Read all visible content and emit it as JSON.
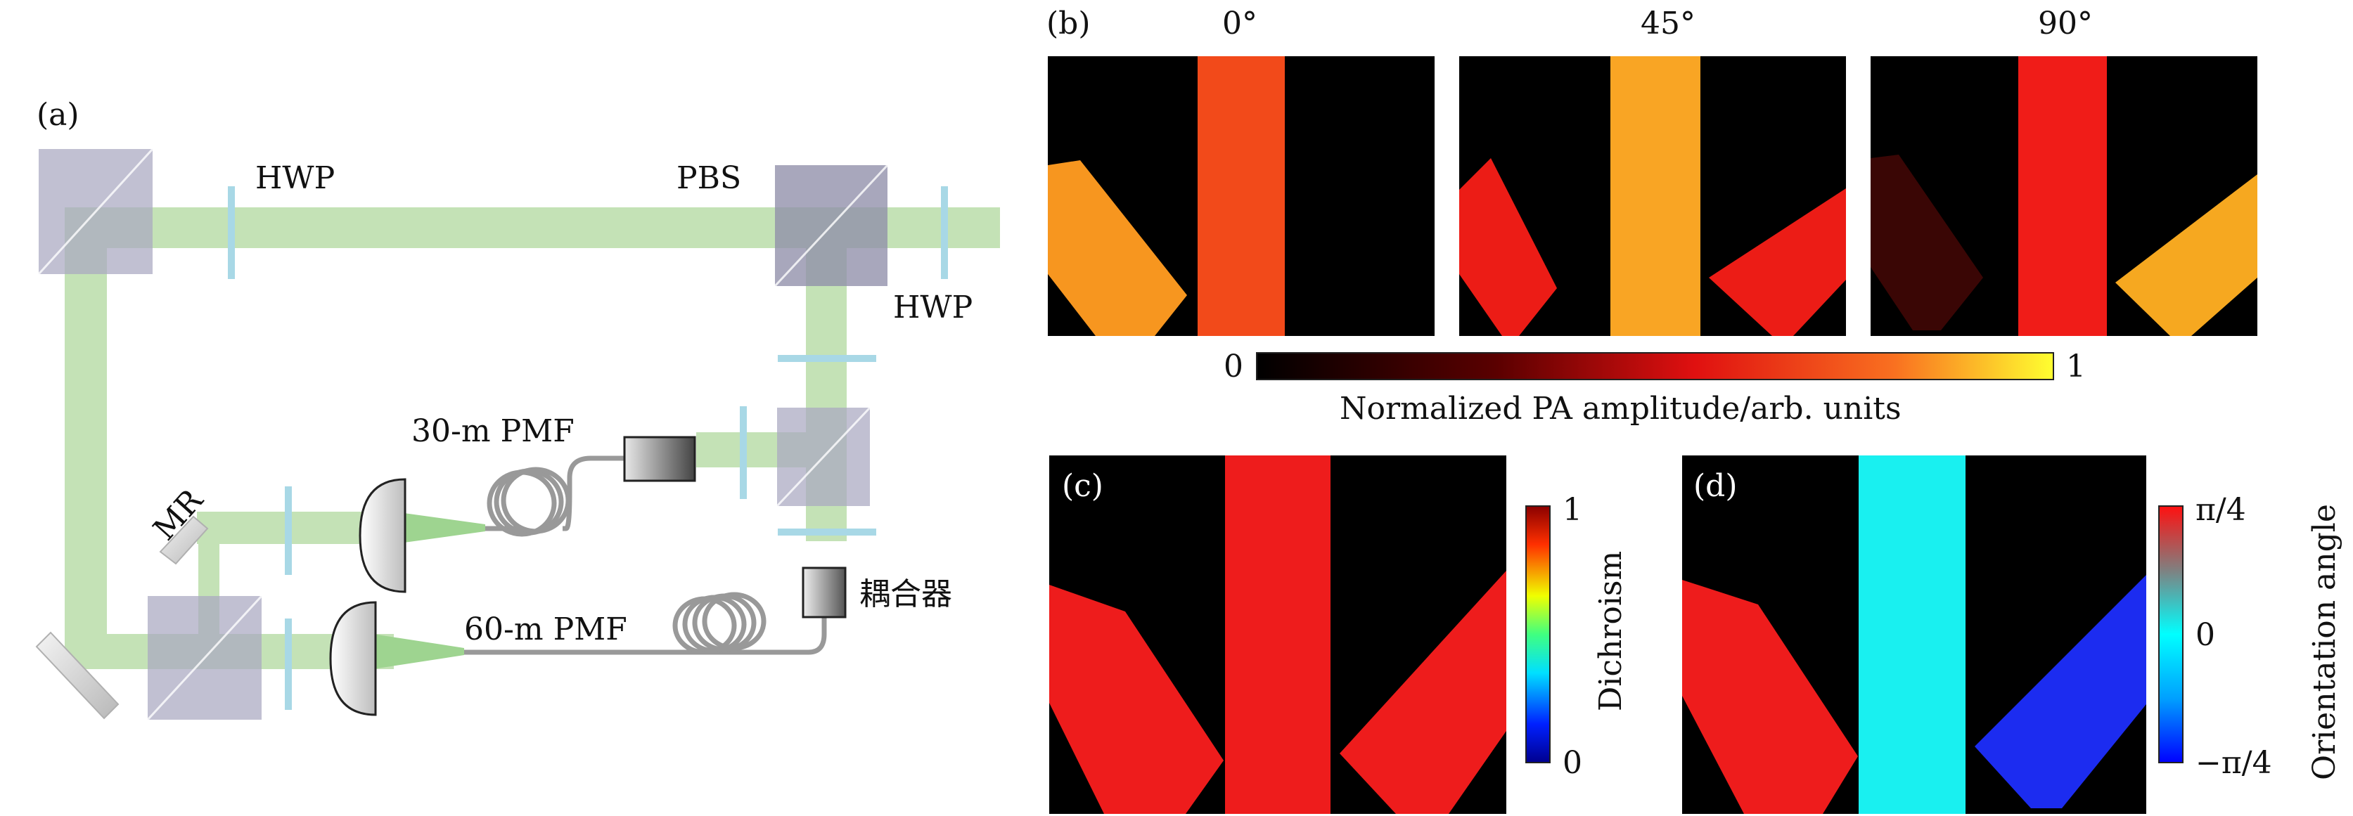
{
  "panel_a": {
    "label": "(a)",
    "labels": {
      "hwp_top": "HWP",
      "pbs": "PBS",
      "hwp_right": "HWP",
      "pmf30": "30-m PMF",
      "pmf60": "60-m PMF",
      "mr": "MR",
      "coupler": "耦合器"
    }
  },
  "panel_b": {
    "label": "(b)",
    "angles": [
      "0°",
      "45°",
      "90°"
    ],
    "colorbar": {
      "min": "0",
      "max": "1",
      "title": "Normalized PA amplitude/arb. units"
    }
  },
  "panel_c": {
    "label": "(c)",
    "colorbar": {
      "min": "0",
      "max": "1",
      "title": "Dichroism"
    }
  },
  "panel_d": {
    "label": "(d)",
    "colorbar": {
      "min": "−π/4",
      "mid": "0",
      "max": "π/4",
      "title": "Orientation angle"
    }
  },
  "colors": {
    "beam": "#bfe0b0",
    "optic": "#a9a8c0",
    "hwp": "#a8d8e6",
    "red": "#ee1c1c",
    "cyan": "#19f0f0",
    "blue": "#1c2cf0"
  }
}
